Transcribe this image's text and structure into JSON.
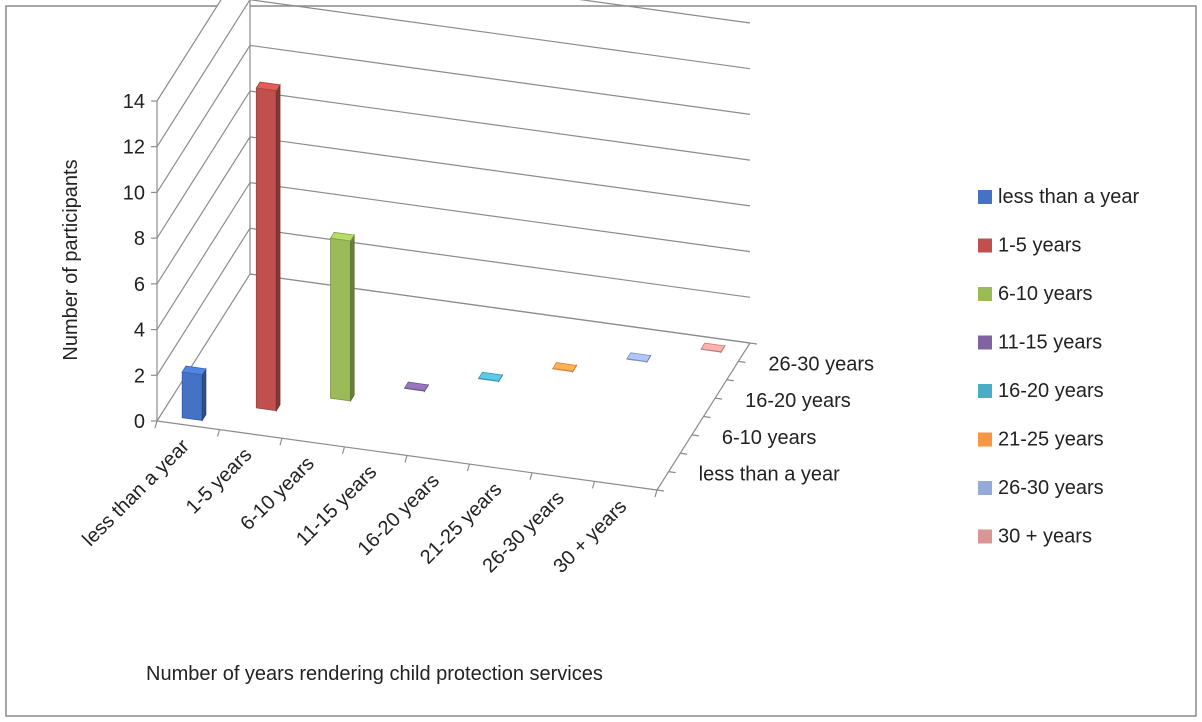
{
  "chart_data": {
    "type": "bar",
    "title": "",
    "xlabel": "Number of years rendering child protection services",
    "ylabel": "Number of participants",
    "ylim": [
      0,
      14
    ],
    "y_ticks": [
      "0",
      "2",
      "4",
      "6",
      "8",
      "10",
      "12",
      "14"
    ],
    "categories": [
      "less than a year",
      "1-5 years",
      "6-10 years",
      "11-15 years",
      "16-20 years",
      "21-25 years",
      "26-30 years",
      "30 + years"
    ],
    "depth_labels": [
      "less than a year",
      "6-10 years",
      "16-20 years",
      "26-30 years"
    ],
    "series": [
      {
        "name": "less than a year",
        "values": [
          2,
          0,
          0,
          0,
          0,
          0,
          0,
          0
        ],
        "color": "#4472C4"
      },
      {
        "name": "1-5 years",
        "values": [
          0,
          14,
          0,
          0,
          0,
          0,
          0,
          0
        ],
        "color": "#C0504D"
      },
      {
        "name": "6-10 years",
        "values": [
          0,
          0,
          7,
          0,
          0,
          0,
          0,
          0
        ],
        "color": "#9BBB59"
      },
      {
        "name": "11-15 years",
        "values": [
          0,
          0,
          0,
          0,
          0,
          0,
          0,
          0
        ],
        "color": "#8064A2"
      },
      {
        "name": "16-20 years",
        "values": [
          0,
          0,
          0,
          0,
          0,
          0,
          0,
          0
        ],
        "color": "#4BACC6"
      },
      {
        "name": "21-25 years",
        "values": [
          0,
          0,
          0,
          0,
          0,
          0,
          0,
          0
        ],
        "color": "#F79646"
      },
      {
        "name": "26-30 years",
        "values": [
          0,
          0,
          0,
          0,
          0,
          0,
          0,
          0
        ],
        "color": "#95A9D7"
      },
      {
        "name": "30 + years",
        "values": [
          0,
          0,
          0,
          0,
          0,
          0,
          0,
          0
        ],
        "color": "#D99694"
      }
    ],
    "grid": true,
    "legend_position": "right"
  }
}
